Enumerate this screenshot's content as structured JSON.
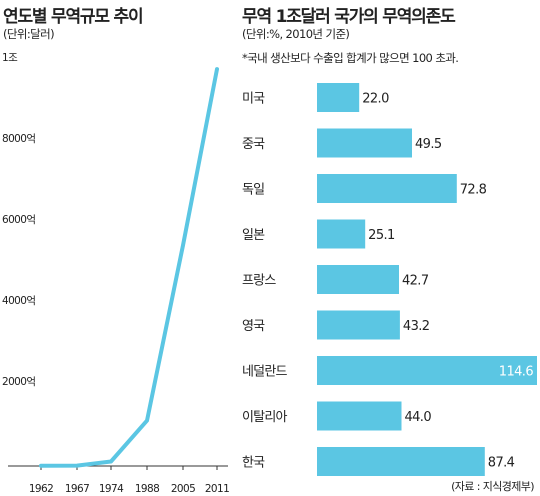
{
  "chart_data": [
    {
      "type": "line",
      "title": "연도별 무역규모 추이",
      "subtitle": "(단위:달러)",
      "x": [
        "1962",
        "1967",
        "1974",
        "1988",
        "2005",
        "2011"
      ],
      "series": [
        {
          "values": [
            5,
            10,
            110,
            1120,
            5450,
            9800
          ]
        }
      ],
      "ylim": [
        0,
        10000
      ],
      "y_ticks": [
        2000,
        4000,
        6000,
        8000,
        10000
      ],
      "y_tick_labels": [
        "2000억",
        "4000억",
        "6000억",
        "8000억",
        "1조"
      ],
      "grid": false,
      "color": "#5bc6e3"
    },
    {
      "type": "bar",
      "orientation": "horizontal",
      "title": "무역 1조달러 국가의 무역의존도",
      "subtitle": "(단위:%, 2010년 기준)",
      "note": "*국내 생산보다 수출입 합계가 많으면 100 초과.",
      "categories": [
        "미국",
        "중국",
        "독일",
        "일본",
        "프랑스",
        "영국",
        "네덜란드",
        "이탈리아",
        "한국"
      ],
      "values": [
        22.0,
        49.5,
        72.8,
        25.1,
        42.7,
        43.2,
        114.6,
        44.0,
        87.4
      ],
      "value_labels": [
        "22.0",
        "49.5",
        "72.8",
        "25.1",
        "42.7",
        "43.2",
        "114.6",
        "44.0",
        "87.4"
      ],
      "xlim": [
        0,
        114.6
      ],
      "grid": false,
      "color": "#5bc6e3"
    }
  ],
  "source": "(자료 : 지식경제부)"
}
